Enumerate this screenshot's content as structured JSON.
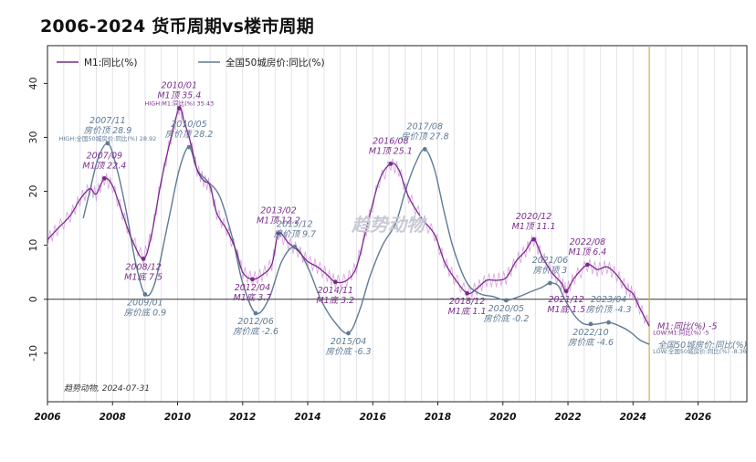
{
  "title": "2006-2024 货币周期vs楼市周期",
  "watermark": "趋势动物",
  "footnote": "趋势动物, 2024-07-31",
  "colors": {
    "m1": "#7a2c8c",
    "m1_raw": "#d08fd6",
    "house": "#5f7b95",
    "vline": "#c8b44a",
    "zero": "#333333"
  },
  "chart_data": {
    "type": "line",
    "xlim": [
      2006,
      2027.5
    ],
    "ylim": [
      -19,
      47
    ],
    "x_ticks": [
      2006,
      2008,
      2010,
      2012,
      2014,
      2016,
      2018,
      2020,
      2022,
      2024,
      2026
    ],
    "y_ticks": [
      -10,
      0,
      10,
      20,
      30,
      40
    ],
    "vertical_line_x": 2024.5,
    "legend": [
      "M1:同比(%)",
      "全国50城房价:同比(%)"
    ],
    "series": [
      {
        "name": "M1:同比(%)",
        "color": "#7a2c8c",
        "points": [
          [
            2006.0,
            11
          ],
          [
            2006.3,
            13
          ],
          [
            2006.7,
            15.5
          ],
          [
            2007.0,
            18.5
          ],
          [
            2007.3,
            20.5
          ],
          [
            2007.5,
            19.5
          ],
          [
            2007.75,
            22.4
          ],
          [
            2008.0,
            21
          ],
          [
            2008.3,
            16
          ],
          [
            2008.6,
            11
          ],
          [
            2008.95,
            7.5
          ],
          [
            2009.2,
            12
          ],
          [
            2009.5,
            22
          ],
          [
            2009.8,
            30
          ],
          [
            2010.05,
            35.4
          ],
          [
            2010.2,
            33
          ],
          [
            2010.4,
            29
          ],
          [
            2010.6,
            24
          ],
          [
            2010.8,
            22
          ],
          [
            2011.0,
            21
          ],
          [
            2011.2,
            16
          ],
          [
            2011.5,
            13
          ],
          [
            2011.8,
            9
          ],
          [
            2012.0,
            5
          ],
          [
            2012.3,
            3.7
          ],
          [
            2012.6,
            4.5
          ],
          [
            2012.9,
            6.5
          ],
          [
            2013.1,
            12.2
          ],
          [
            2013.4,
            10.5
          ],
          [
            2013.7,
            9
          ],
          [
            2014.0,
            7
          ],
          [
            2014.3,
            6
          ],
          [
            2014.6,
            4.5
          ],
          [
            2014.85,
            3.2
          ],
          [
            2015.2,
            3.5
          ],
          [
            2015.5,
            6
          ],
          [
            2015.8,
            13
          ],
          [
            2016.2,
            22
          ],
          [
            2016.55,
            25.1
          ],
          [
            2016.8,
            24
          ],
          [
            2017.1,
            19
          ],
          [
            2017.5,
            15
          ],
          [
            2017.9,
            12
          ],
          [
            2018.2,
            7
          ],
          [
            2018.5,
            4
          ],
          [
            2018.9,
            1.1
          ],
          [
            2019.2,
            2
          ],
          [
            2019.5,
            3.5
          ],
          [
            2019.8,
            3.5
          ],
          [
            2020.1,
            4
          ],
          [
            2020.4,
            7
          ],
          [
            2020.7,
            9
          ],
          [
            2020.95,
            11.1
          ],
          [
            2021.2,
            8
          ],
          [
            2021.5,
            5
          ],
          [
            2021.8,
            3
          ],
          [
            2021.95,
            1.5
          ],
          [
            2022.2,
            4
          ],
          [
            2022.6,
            6.4
          ],
          [
            2022.9,
            5.5
          ],
          [
            2023.2,
            6
          ],
          [
            2023.5,
            4.5
          ],
          [
            2023.8,
            2
          ],
          [
            2024.0,
            1
          ],
          [
            2024.2,
            -1.5
          ],
          [
            2024.5,
            -5
          ]
        ]
      },
      {
        "name": "全国50城房价:同比(%)",
        "color": "#5f7b95",
        "points": [
          [
            2007.1,
            15
          ],
          [
            2007.3,
            20
          ],
          [
            2007.55,
            26
          ],
          [
            2007.85,
            28.9
          ],
          [
            2008.1,
            25
          ],
          [
            2008.4,
            17
          ],
          [
            2008.7,
            7
          ],
          [
            2009.0,
            0.9
          ],
          [
            2009.3,
            3
          ],
          [
            2009.7,
            14
          ],
          [
            2010.05,
            24
          ],
          [
            2010.35,
            28.2
          ],
          [
            2010.6,
            24
          ],
          [
            2010.9,
            22
          ],
          [
            2011.3,
            19
          ],
          [
            2011.7,
            11
          ],
          [
            2012.0,
            3
          ],
          [
            2012.4,
            -2.6
          ],
          [
            2012.8,
            0
          ],
          [
            2013.2,
            7
          ],
          [
            2013.6,
            9.7
          ],
          [
            2014.0,
            6
          ],
          [
            2014.4,
            0
          ],
          [
            2014.8,
            -4
          ],
          [
            2015.25,
            -6.3
          ],
          [
            2015.6,
            -2
          ],
          [
            2015.9,
            4
          ],
          [
            2016.3,
            10
          ],
          [
            2016.7,
            14
          ],
          [
            2017.0,
            20
          ],
          [
            2017.3,
            25
          ],
          [
            2017.6,
            27.8
          ],
          [
            2017.9,
            24
          ],
          [
            2018.2,
            16
          ],
          [
            2018.5,
            9
          ],
          [
            2018.9,
            3
          ],
          [
            2019.3,
            1
          ],
          [
            2019.7,
            0.5
          ],
          [
            2020.1,
            -0.2
          ],
          [
            2020.5,
            0.5
          ],
          [
            2020.9,
            1.5
          ],
          [
            2021.2,
            2.2
          ],
          [
            2021.45,
            3
          ],
          [
            2021.7,
            2.5
          ],
          [
            2021.9,
            0
          ],
          [
            2022.2,
            -3
          ],
          [
            2022.5,
            -4.6
          ],
          [
            2022.9,
            -4.6
          ],
          [
            2023.25,
            -4.3
          ],
          [
            2023.6,
            -5
          ],
          [
            2023.9,
            -6
          ],
          [
            2024.2,
            -7.5
          ],
          [
            2024.5,
            -8.36
          ]
        ]
      }
    ],
    "markers": [
      {
        "series": "M1",
        "x": 2007.75,
        "y": 22.4,
        "label1": "2007/09",
        "label2": "M1顶 22.4"
      },
      {
        "series": "M1",
        "x": 2008.95,
        "y": 7.5,
        "label1": "2008/12",
        "label2": "M1底 7.5"
      },
      {
        "series": "M1",
        "x": 2010.05,
        "y": 35.4,
        "label1": "2010/01",
        "label2": "M1顶 35.4"
      },
      {
        "series": "M1",
        "x": 2012.3,
        "y": 3.7,
        "label1": "2012/04",
        "label2": "M1底 3.7"
      },
      {
        "series": "M1",
        "x": 2013.1,
        "y": 12.2,
        "label1": "2013/02",
        "label2": "M1顶 12.2"
      },
      {
        "series": "M1",
        "x": 2014.85,
        "y": 3.2,
        "label1": "2014/11",
        "label2": "M1底 3.2"
      },
      {
        "series": "M1",
        "x": 2016.55,
        "y": 25.1,
        "label1": "2016/08",
        "label2": "M1顶 25.1"
      },
      {
        "series": "M1",
        "x": 2018.9,
        "y": 1.1,
        "label1": "2018/12",
        "label2": "M1底 1.1"
      },
      {
        "series": "M1",
        "x": 2020.95,
        "y": 11.1,
        "label1": "2020/12",
        "label2": "M1顶 11.1"
      },
      {
        "series": "M1",
        "x": 2021.95,
        "y": 1.5,
        "label1": "2021/12",
        "label2": "M1底 1.5"
      },
      {
        "series": "M1",
        "x": 2022.6,
        "y": 6.4,
        "label1": "2022/08",
        "label2": "M1顶 6.4"
      },
      {
        "series": "House",
        "x": 2007.85,
        "y": 28.9,
        "label1": "2007/11",
        "label2": "房价顶 28.9"
      },
      {
        "series": "House",
        "x": 2009.0,
        "y": 0.9,
        "label1": "2009/01",
        "label2": "房价底 0.9"
      },
      {
        "series": "House",
        "x": 2010.35,
        "y": 28.2,
        "label1": "2010/05",
        "label2": "房价顶 28.2"
      },
      {
        "series": "House",
        "x": 2012.4,
        "y": -2.6,
        "label1": "2012/06",
        "label2": "房价底 -2.6"
      },
      {
        "series": "House",
        "x": 2013.6,
        "y": 9.7,
        "label1": "2013/12",
        "label2": "房价顶 9.7"
      },
      {
        "series": "House",
        "x": 2015.25,
        "y": -6.3,
        "label1": "2015/04",
        "label2": "房价底 -6.3"
      },
      {
        "series": "House",
        "x": 2017.6,
        "y": 27.8,
        "label1": "2017/08",
        "label2": "房价顶 27.8"
      },
      {
        "series": "House",
        "x": 2020.1,
        "y": -0.2,
        "label1": "2020/05",
        "label2": "房价底 -0.2"
      },
      {
        "series": "House",
        "x": 2021.45,
        "y": 3,
        "label1": "2021/06",
        "label2": "房价顶 3"
      },
      {
        "series": "House",
        "x": 2022.7,
        "y": -4.6,
        "label1": "2022/10",
        "label2": "房价底 -4.6"
      },
      {
        "series": "House",
        "x": 2023.25,
        "y": -4.3,
        "label1": "2023/04",
        "label2": "房价顶 -4.3"
      }
    ],
    "end_labels": [
      {
        "series": "M1",
        "x": 2024.5,
        "y": -5,
        "text": "M1:同比(%) -5"
      },
      {
        "series": "House",
        "x": 2024.5,
        "y": -8.36,
        "text": "全国50城房价:同比(%)"
      }
    ],
    "extreme_labels": [
      {
        "x": 2010.05,
        "y": 35.4,
        "text": "HIGH:M1:同比(%) 35.43"
      },
      {
        "x": 2007.85,
        "y": 28.9,
        "text": "HIGH:全国50城房价:同比(%) 28.92"
      },
      {
        "x": 2024.5,
        "y": -5,
        "text": "LOW:M1:同比(%) -5"
      },
      {
        "x": 2024.5,
        "y": -8.36,
        "text": "LOW:全国50城房价:同比(%) -8.36"
      }
    ]
  }
}
